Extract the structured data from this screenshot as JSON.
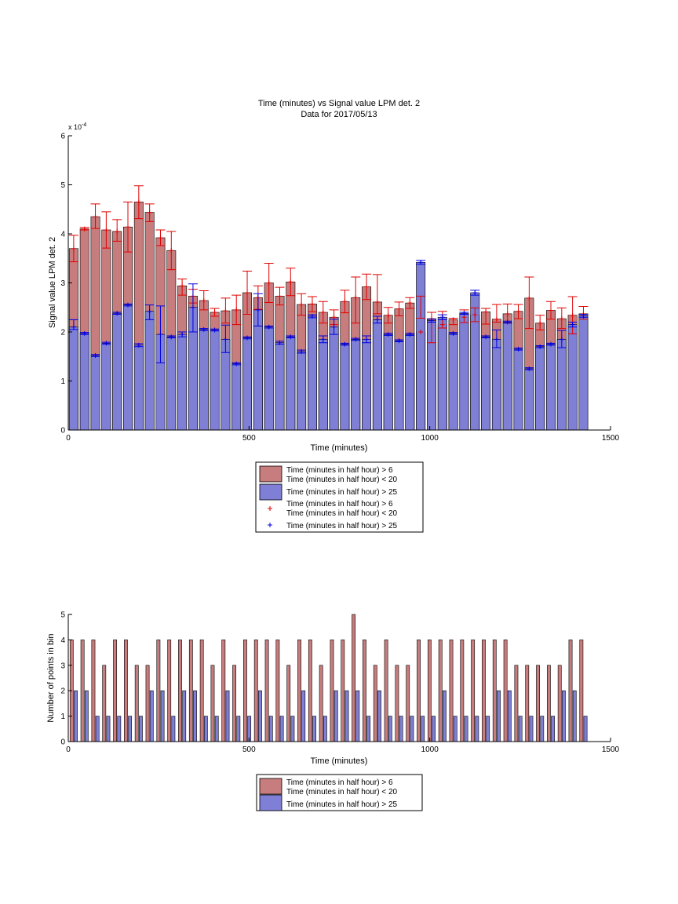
{
  "colors": {
    "upper": "#c77d7d",
    "lower": "#7f7fd5",
    "upper_err": "#e00000",
    "lower_err": "#0000e0"
  },
  "legend_labels": {
    "upper_bar": [
      "Time (minutes in half hour) > 6",
      "Time (minutes in half hour) < 20"
    ],
    "lower_bar": [
      "Time (minutes in half hour) > 25"
    ]
  },
  "chart_data": [
    {
      "type": "bar",
      "title": "Time (minutes) vs Signal value LPM det. 2",
      "subtitle": "Data for 2017/05/13",
      "xlabel": "Time (minutes)",
      "ylabel": "Signal value LPM det. 2",
      "exponent_label": "x 10",
      "exponent_power": "-4",
      "xlim": [
        0,
        1500
      ],
      "ylim": [
        0,
        6
      ],
      "xticks": [
        "0",
        "500",
        "1000",
        "1500"
      ],
      "yticks": [
        "0",
        "1",
        "2",
        "3",
        "4",
        "5",
        "6"
      ],
      "x": [
        15,
        45,
        75,
        105,
        135,
        165,
        195,
        225,
        255,
        285,
        315,
        345,
        375,
        405,
        435,
        465,
        495,
        525,
        555,
        585,
        615,
        645,
        675,
        705,
        735,
        765,
        795,
        825,
        855,
        885,
        915,
        945,
        975,
        1005,
        1035,
        1065,
        1095,
        1125,
        1155,
        1185,
        1215,
        1245,
        1275,
        1305,
        1335,
        1365,
        1395,
        1425
      ],
      "series": [
        {
          "name": "Time (minutes in half hour) > 6 Time (minutes in half hour) < 20",
          "values": [
            3.7,
            4.1,
            4.35,
            4.08,
            4.05,
            4.14,
            4.65,
            4.44,
            3.92,
            3.66,
            2.94,
            2.73,
            2.64,
            2.4,
            2.43,
            2.45,
            2.8,
            2.7,
            3.0,
            2.73,
            3.02,
            2.56,
            2.57,
            2.4,
            2.3,
            2.62,
            2.7,
            2.92,
            2.61,
            2.34,
            2.47,
            2.59,
            2.0,
            2.27,
            2.15,
            2.25,
            2.3,
            2.35,
            2.41,
            2.26,
            2.37,
            2.42,
            2.69,
            2.18,
            2.44,
            2.27,
            2.34,
            2.37
          ],
          "err_low": [
            3.43,
            4.08,
            4.11,
            3.71,
            3.85,
            3.63,
            4.31,
            4.25,
            3.76,
            3.27,
            2.75,
            2.59,
            2.45,
            2.32,
            2.18,
            2.15,
            2.36,
            2.46,
            2.6,
            2.55,
            2.74,
            2.34,
            2.41,
            2.18,
            2.15,
            2.39,
            2.18,
            2.66,
            2.37,
            2.18,
            2.33,
            2.48,
            2.28,
            1.78,
            2.08,
            2.15,
            2.19,
            2.21,
            2.16,
            2.2,
            2.18,
            2.27,
            2.07,
            2.04,
            2.26,
            2.07,
            1.96,
            2.26
          ],
          "err_high": [
            3.97,
            4.13,
            4.61,
            4.45,
            4.29,
            4.65,
            4.98,
            4.61,
            4.08,
            4.05,
            3.08,
            2.87,
            2.84,
            2.48,
            2.69,
            2.75,
            3.24,
            2.94,
            3.4,
            2.91,
            3.3,
            2.78,
            2.72,
            2.62,
            2.45,
            2.85,
            3.12,
            3.18,
            3.17,
            2.5,
            2.61,
            2.7,
            2.73,
            2.4,
            2.42,
            2.28,
            2.45,
            2.49,
            2.48,
            2.56,
            2.57,
            2.56,
            3.12,
            2.34,
            2.62,
            2.49,
            2.72,
            2.52
          ]
        },
        {
          "name": "Time (minutes in half hour) > 25",
          "values": [
            2.1,
            1.97,
            1.52,
            1.77,
            2.38,
            2.55,
            1.73,
            2.42,
            1.95,
            1.9,
            1.95,
            2.5,
            2.05,
            2.04,
            1.85,
            1.35,
            1.88,
            2.45,
            2.1,
            1.78,
            1.9,
            1.6,
            2.32,
            1.85,
            2.1,
            1.75,
            1.85,
            1.85,
            2.25,
            1.95,
            1.82,
            1.95,
            3.42,
            2.23,
            2.3,
            1.97,
            2.38,
            2.8,
            1.9,
            1.85,
            2.2,
            1.65,
            1.25,
            1.7,
            1.75,
            1.85,
            2.15,
            2.33
          ],
          "err_low": [
            2.05,
            1.95,
            1.5,
            1.75,
            2.36,
            2.53,
            1.7,
            2.25,
            1.37,
            1.88,
            1.9,
            2.0,
            2.03,
            2.02,
            1.58,
            1.33,
            1.86,
            2.12,
            2.08,
            1.75,
            1.88,
            1.57,
            2.29,
            1.78,
            1.95,
            1.73,
            1.83,
            1.78,
            2.18,
            1.93,
            1.8,
            1.93,
            3.38,
            2.2,
            2.25,
            1.95,
            2.36,
            2.75,
            1.88,
            1.68,
            2.18,
            1.63,
            1.23,
            1.68,
            1.73,
            1.68,
            2.1,
            2.3
          ],
          "err_high": [
            2.25,
            1.99,
            1.54,
            1.79,
            2.4,
            2.57,
            1.76,
            2.55,
            2.53,
            1.92,
            2.0,
            2.98,
            2.07,
            2.06,
            2.14,
            1.37,
            1.9,
            2.78,
            2.12,
            1.81,
            1.92,
            1.63,
            2.35,
            1.92,
            2.26,
            1.77,
            1.87,
            1.92,
            2.32,
            1.97,
            1.84,
            1.97,
            3.46,
            2.26,
            2.35,
            1.99,
            2.4,
            2.85,
            1.92,
            2.04,
            2.22,
            1.67,
            1.27,
            1.72,
            1.77,
            2.03,
            2.2,
            2.36
          ]
        }
      ],
      "legend_placement": "below-center",
      "grid": false
    },
    {
      "type": "bar",
      "title": "",
      "xlabel": "Time (minutes)",
      "ylabel": "Number of points in bin",
      "xlim": [
        0,
        1500
      ],
      "ylim": [
        0,
        5
      ],
      "xticks": [
        "0",
        "500",
        "1000",
        "1500"
      ],
      "yticks": [
        "0",
        "1",
        "2",
        "3",
        "4",
        "5"
      ],
      "x": [
        15,
        45,
        75,
        105,
        135,
        165,
        195,
        225,
        255,
        285,
        315,
        345,
        375,
        405,
        435,
        465,
        495,
        525,
        555,
        585,
        615,
        645,
        675,
        705,
        735,
        765,
        795,
        825,
        855,
        885,
        915,
        945,
        975,
        1005,
        1035,
        1065,
        1095,
        1125,
        1155,
        1185,
        1215,
        1245,
        1275,
        1305,
        1335,
        1365,
        1395,
        1425
      ],
      "series": [
        {
          "name": "Time (minutes in half hour) > 6 Time (minutes in half hour) < 20",
          "values": [
            4,
            4,
            4,
            3,
            4,
            4,
            3,
            3,
            4,
            4,
            4,
            4,
            4,
            3,
            4,
            3,
            4,
            4,
            4,
            4,
            3,
            4,
            4,
            3,
            4,
            4,
            5,
            4,
            3,
            4,
            3,
            3,
            4,
            4,
            4,
            4,
            4,
            4,
            4,
            4,
            4,
            3,
            3,
            3,
            3,
            3,
            4,
            4
          ]
        },
        {
          "name": "Time (minutes in half hour) > 25",
          "values": [
            2,
            2,
            1,
            1,
            1,
            1,
            1,
            2,
            2,
            1,
            2,
            2,
            1,
            1,
            2,
            1,
            1,
            2,
            1,
            1,
            1,
            2,
            1,
            1,
            2,
            2,
            2,
            1,
            2,
            1,
            1,
            1,
            1,
            1,
            2,
            1,
            1,
            1,
            1,
            2,
            2,
            1,
            1,
            1,
            1,
            2,
            2,
            1
          ]
        }
      ],
      "legend_placement": "below-center",
      "grid": false
    }
  ]
}
